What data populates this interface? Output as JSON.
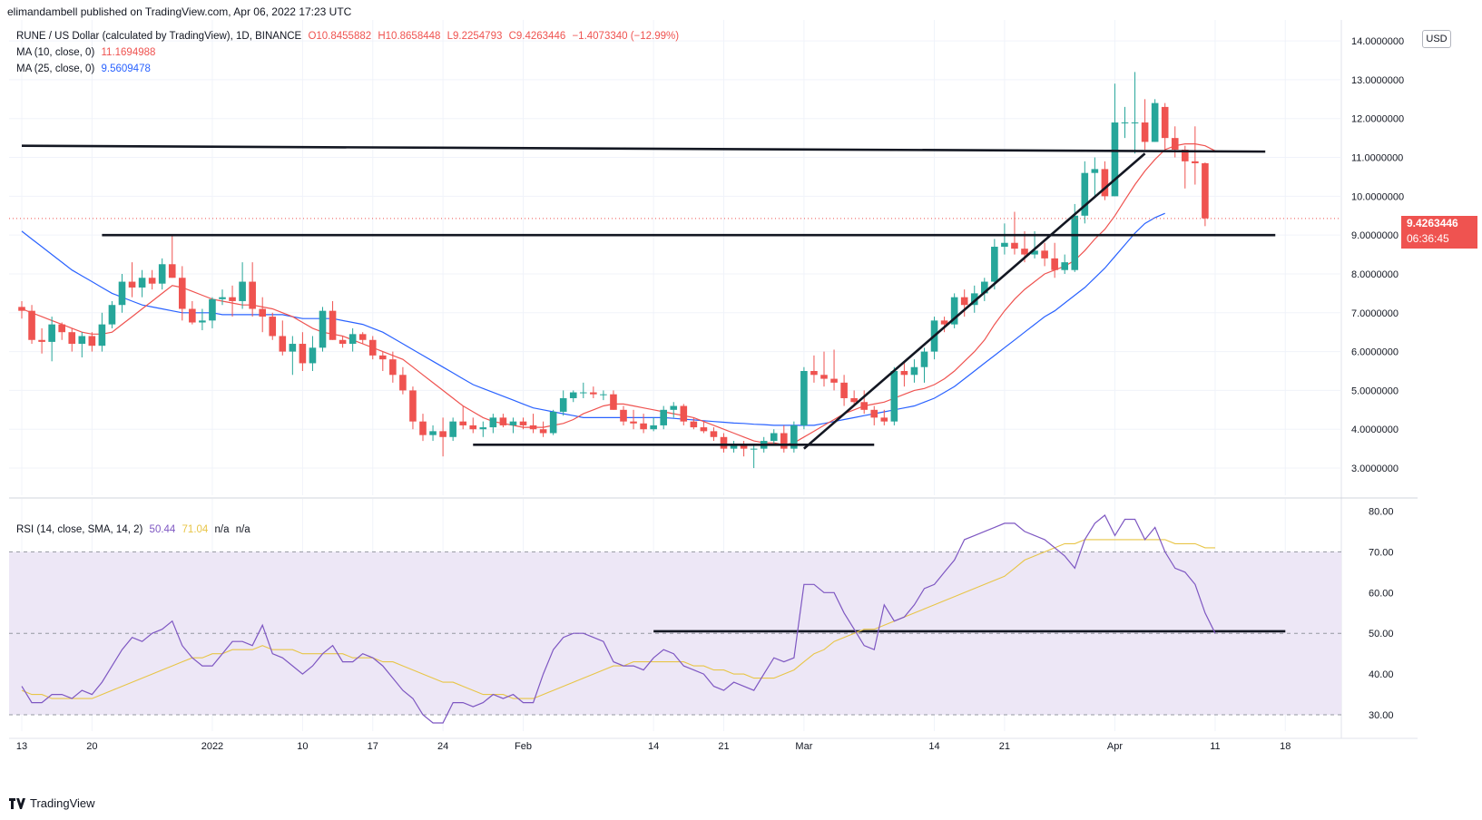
{
  "header": {
    "publisher_line": "elimandambell published on TradingView.com, Apr 06, 2022 17:23 UTC"
  },
  "legend": {
    "symbol": "RUNE / US Dollar (calculated by TradingView), 1D, BINANCE",
    "open": "O10.8455882",
    "high": "H10.8658448",
    "low": "L9.2254793",
    "close": "C9.4263446",
    "change": "−1.4073340 (−12.99%)",
    "ma10_label": "MA (10, close, 0)",
    "ma10_value": "11.1694988",
    "ma25_label": "MA (25, close, 0)",
    "ma25_value": "9.5609478",
    "rsi_label": "RSI (14, close, SMA, 14, 2)",
    "rsi_value": "50.44",
    "rsi_ma_value": "71.04",
    "rsi_na1": "n/a",
    "rsi_na2": "n/a"
  },
  "currency_button": "USD",
  "last_price_tag": {
    "price": "9.4263446",
    "countdown": "06:36:45"
  },
  "footer": {
    "brand": "TradingView"
  },
  "colors": {
    "up": "#26a69a",
    "down": "#ef5350",
    "ma10": "#ef5350",
    "ma25": "#2962ff",
    "rsi": "#7e57c2",
    "rsi_ma": "#e8c547",
    "rsi_band": "#ede7f6",
    "trendline": "#131722"
  },
  "chart_data": [
    {
      "type": "candlestick",
      "title": "RUNE / US Dollar (calculated by TradingView), 1D, BINANCE",
      "ylim": [
        2.3,
        14.4
      ],
      "y_ticks": [
        "3.0000000",
        "4.0000000",
        "5.0000000",
        "6.0000000",
        "7.0000000",
        "8.0000000",
        "9.0000000",
        "10.0000000",
        "11.0000000",
        "12.0000000",
        "13.0000000",
        "14.0000000"
      ],
      "y_tick_values": [
        3,
        4,
        5,
        6,
        7,
        8,
        9,
        10,
        11,
        12,
        13,
        14
      ],
      "x_ticks": [
        {
          "label": "13",
          "day": 0
        },
        {
          "label": "20",
          "day": 7
        },
        {
          "label": "2022",
          "day": 19
        },
        {
          "label": "10",
          "day": 28
        },
        {
          "label": "17",
          "day": 35
        },
        {
          "label": "24",
          "day": 42
        },
        {
          "label": "Feb",
          "day": 50
        },
        {
          "label": "14",
          "day": 63
        },
        {
          "label": "21",
          "day": 70
        },
        {
          "label": "Mar",
          "day": 78
        },
        {
          "label": "14",
          "day": 91
        },
        {
          "label": "21",
          "day": 98
        },
        {
          "label": "Apr",
          "day": 109
        },
        {
          "label": "11",
          "day": 119
        },
        {
          "label": "18",
          "day": 126
        }
      ],
      "candles": [
        [
          7.15,
          7.3,
          6.85,
          7.05
        ],
        [
          7.05,
          7.2,
          6.2,
          6.3
        ],
        [
          6.3,
          6.6,
          5.95,
          6.25
        ],
        [
          6.25,
          6.9,
          5.75,
          6.7
        ],
        [
          6.7,
          6.75,
          6.3,
          6.5
        ],
        [
          6.5,
          6.6,
          6.0,
          6.2
        ],
        [
          6.2,
          6.5,
          5.85,
          6.4
        ],
        [
          6.4,
          6.5,
          6.0,
          6.15
        ],
        [
          6.15,
          7.0,
          6.0,
          6.7
        ],
        [
          6.7,
          7.3,
          6.6,
          7.2
        ],
        [
          7.2,
          8.0,
          7.0,
          7.8
        ],
        [
          7.8,
          8.3,
          7.4,
          7.65
        ],
        [
          7.65,
          8.1,
          7.4,
          7.9
        ],
        [
          7.9,
          8.1,
          7.6,
          7.75
        ],
        [
          7.75,
          8.4,
          7.6,
          8.25
        ],
        [
          8.25,
          9.0,
          7.9,
          7.9
        ],
        [
          7.9,
          8.2,
          6.8,
          7.1
        ],
        [
          7.1,
          7.3,
          6.7,
          6.75
        ],
        [
          6.75,
          7.1,
          6.55,
          6.8
        ],
        [
          6.8,
          7.4,
          6.6,
          7.35
        ],
        [
          7.35,
          7.6,
          7.2,
          7.4
        ],
        [
          7.4,
          7.7,
          6.9,
          7.3
        ],
        [
          7.3,
          8.3,
          7.1,
          7.8
        ],
        [
          7.8,
          8.3,
          6.9,
          7.1
        ],
        [
          7.1,
          7.4,
          6.5,
          6.9
        ],
        [
          6.9,
          7.0,
          6.3,
          6.4
        ],
        [
          6.4,
          6.8,
          5.9,
          6.0
        ],
        [
          6.0,
          6.4,
          5.4,
          6.2
        ],
        [
          6.2,
          6.5,
          5.5,
          5.7
        ],
        [
          5.7,
          6.4,
          5.5,
          6.1
        ],
        [
          6.1,
          7.15,
          6.0,
          7.05
        ],
        [
          7.05,
          7.3,
          6.3,
          6.3
        ],
        [
          6.3,
          6.4,
          6.1,
          6.2
        ],
        [
          6.2,
          6.6,
          6.0,
          6.45
        ],
        [
          6.45,
          6.5,
          6.2,
          6.3
        ],
        [
          6.3,
          6.4,
          5.8,
          5.9
        ],
        [
          5.9,
          6.0,
          5.5,
          5.8
        ],
        [
          5.8,
          6.0,
          5.2,
          5.4
        ],
        [
          5.4,
          5.6,
          4.9,
          5.0
        ],
        [
          5.0,
          5.1,
          4.0,
          4.2
        ],
        [
          4.2,
          4.4,
          3.7,
          3.85
        ],
        [
          3.85,
          4.1,
          3.7,
          3.95
        ],
        [
          3.95,
          4.3,
          3.3,
          3.8
        ],
        [
          3.8,
          4.3,
          3.7,
          4.2
        ],
        [
          4.2,
          4.6,
          4.0,
          4.1
        ],
        [
          4.1,
          4.3,
          3.9,
          4.0
        ],
        [
          4.0,
          4.2,
          3.8,
          4.05
        ],
        [
          4.05,
          4.4,
          3.9,
          4.3
        ],
        [
          4.3,
          4.4,
          4.05,
          4.1
        ],
        [
          4.1,
          4.3,
          3.9,
          4.2
        ],
        [
          4.2,
          4.3,
          4.0,
          4.1
        ],
        [
          4.1,
          4.4,
          3.9,
          4.0
        ],
        [
          4.0,
          4.2,
          3.8,
          3.9
        ],
        [
          3.9,
          4.5,
          3.85,
          4.45
        ],
        [
          4.45,
          5.0,
          4.35,
          4.8
        ],
        [
          4.8,
          5.0,
          4.7,
          4.95
        ],
        [
          4.95,
          5.2,
          4.8,
          4.95
        ],
        [
          4.95,
          5.1,
          4.8,
          4.9
        ],
        [
          4.9,
          5.0,
          4.75,
          4.9
        ],
        [
          4.9,
          5.0,
          4.5,
          4.5
        ],
        [
          4.5,
          4.6,
          4.1,
          4.2
        ],
        [
          4.2,
          4.5,
          4.0,
          4.15
        ],
        [
          4.15,
          4.4,
          3.9,
          4.0
        ],
        [
          4.0,
          4.3,
          3.95,
          4.1
        ],
        [
          4.1,
          4.6,
          4.0,
          4.5
        ],
        [
          4.5,
          4.7,
          4.3,
          4.6
        ],
        [
          4.6,
          4.65,
          4.1,
          4.2
        ],
        [
          4.2,
          4.3,
          4.0,
          4.05
        ],
        [
          4.05,
          4.2,
          3.9,
          3.95
        ],
        [
          3.95,
          4.05,
          3.7,
          3.8
        ],
        [
          3.8,
          3.9,
          3.4,
          3.5
        ],
        [
          3.5,
          3.7,
          3.4,
          3.6
        ],
        [
          3.6,
          3.7,
          3.3,
          3.5
        ],
        [
          3.5,
          3.6,
          3.0,
          3.5
        ],
        [
          3.5,
          3.8,
          3.4,
          3.7
        ],
        [
          3.7,
          4.0,
          3.6,
          3.9
        ],
        [
          3.9,
          4.1,
          3.4,
          3.5
        ],
        [
          3.5,
          4.2,
          3.4,
          4.1
        ],
        [
          4.1,
          5.6,
          4.0,
          5.5
        ],
        [
          5.5,
          5.9,
          5.2,
          5.4
        ],
        [
          5.4,
          6.0,
          5.1,
          5.3
        ],
        [
          5.3,
          6.05,
          5.0,
          5.2
        ],
        [
          5.2,
          5.4,
          4.6,
          4.8
        ],
        [
          4.8,
          5.0,
          4.6,
          4.7
        ],
        [
          4.7,
          5.0,
          4.4,
          4.5
        ],
        [
          4.5,
          4.6,
          4.1,
          4.3
        ],
        [
          4.3,
          4.5,
          4.1,
          4.2
        ],
        [
          4.2,
          5.6,
          4.1,
          5.5
        ],
        [
          5.5,
          5.7,
          5.1,
          5.4
        ],
        [
          5.4,
          5.8,
          5.2,
          5.6
        ],
        [
          5.6,
          6.1,
          5.2,
          6.0
        ],
        [
          6.0,
          6.9,
          5.8,
          6.8
        ],
        [
          6.8,
          6.9,
          6.5,
          6.7
        ],
        [
          6.7,
          7.5,
          6.6,
          7.4
        ],
        [
          7.4,
          7.6,
          6.9,
          7.2
        ],
        [
          7.2,
          7.7,
          7.0,
          7.5
        ],
        [
          7.5,
          7.9,
          7.3,
          7.8
        ],
        [
          7.8,
          8.9,
          7.6,
          8.7
        ],
        [
          8.7,
          9.3,
          8.5,
          8.8
        ],
        [
          8.8,
          9.6,
          8.5,
          8.65
        ],
        [
          8.65,
          9.1,
          8.3,
          8.5
        ],
        [
          8.5,
          9.1,
          8.4,
          8.6
        ],
        [
          8.6,
          8.8,
          8.2,
          8.4
        ],
        [
          8.4,
          8.8,
          7.9,
          8.1
        ],
        [
          8.1,
          8.5,
          8.0,
          8.3
        ],
        [
          8.1,
          9.8,
          8.05,
          9.5
        ],
        [
          9.5,
          10.9,
          9.3,
          10.6
        ],
        [
          10.6,
          11.0,
          10.0,
          10.7
        ],
        [
          10.7,
          10.9,
          9.9,
          10.0
        ],
        [
          10.0,
          12.9,
          10.0,
          11.9
        ],
        [
          11.9,
          12.3,
          11.5,
          11.9
        ],
        [
          11.9,
          13.2,
          11.1,
          11.9
        ],
        [
          11.9,
          12.5,
          11.2,
          11.4
        ],
        [
          11.4,
          12.5,
          11.4,
          12.4
        ],
        [
          12.3,
          12.4,
          11.2,
          11.5
        ],
        [
          11.5,
          11.8,
          11.0,
          11.2
        ],
        [
          11.2,
          11.3,
          10.2,
          10.9
        ],
        [
          10.9,
          11.8,
          10.3,
          10.85
        ],
        [
          10.85,
          10.87,
          9.23,
          9.43
        ]
      ],
      "ma10_values": [
        7.1,
        7.0,
        6.9,
        6.8,
        6.7,
        6.6,
        6.5,
        6.45,
        6.45,
        6.5,
        6.7,
        6.9,
        7.1,
        7.3,
        7.5,
        7.7,
        7.65,
        7.55,
        7.45,
        7.35,
        7.3,
        7.25,
        7.2,
        7.2,
        7.15,
        7.1,
        7.0,
        6.9,
        6.75,
        6.6,
        6.5,
        6.45,
        6.4,
        6.3,
        6.2,
        6.1,
        6.0,
        5.9,
        5.8,
        5.6,
        5.4,
        5.2,
        5.0,
        4.8,
        4.6,
        4.45,
        4.3,
        4.2,
        4.15,
        4.1,
        4.05,
        4.05,
        4.05,
        4.1,
        4.15,
        4.25,
        4.4,
        4.5,
        4.6,
        4.65,
        4.65,
        4.6,
        4.55,
        4.5,
        4.45,
        4.4,
        4.35,
        4.3,
        4.2,
        4.1,
        4.0,
        3.9,
        3.8,
        3.7,
        3.65,
        3.65,
        3.6,
        3.65,
        3.8,
        3.95,
        4.1,
        4.25,
        4.4,
        4.5,
        4.6,
        4.65,
        4.7,
        4.8,
        4.9,
        5.0,
        5.05,
        5.15,
        5.3,
        5.5,
        5.75,
        6.0,
        6.3,
        6.7,
        7.05,
        7.35,
        7.6,
        7.8,
        8.0,
        8.1,
        8.2,
        8.35,
        8.6,
        8.9,
        9.15,
        9.5,
        9.9,
        10.3,
        10.65,
        10.95,
        11.2,
        11.3,
        11.35,
        11.35,
        11.3,
        11.17
      ],
      "ma25_values": [
        9.1,
        8.9,
        8.7,
        8.5,
        8.3,
        8.1,
        7.95,
        7.8,
        7.65,
        7.5,
        7.4,
        7.3,
        7.2,
        7.15,
        7.1,
        7.05,
        7.0,
        7.0,
        7.0,
        7.0,
        6.95,
        6.95,
        6.95,
        6.95,
        6.95,
        6.95,
        6.95,
        6.9,
        6.85,
        6.85,
        6.85,
        6.85,
        6.8,
        6.75,
        6.7,
        6.6,
        6.5,
        6.35,
        6.2,
        6.05,
        5.9,
        5.75,
        5.6,
        5.45,
        5.3,
        5.15,
        5.05,
        4.95,
        4.85,
        4.75,
        4.65,
        4.55,
        4.5,
        4.45,
        4.4,
        4.35,
        4.3,
        4.3,
        4.3,
        4.3,
        4.3,
        4.3,
        4.3,
        4.3,
        4.3,
        4.28,
        4.26,
        4.24,
        4.22,
        4.2,
        4.18,
        4.16,
        4.15,
        4.13,
        4.12,
        4.1,
        4.1,
        4.1,
        4.1,
        4.1,
        4.15,
        4.2,
        4.25,
        4.3,
        4.35,
        4.4,
        4.45,
        4.5,
        4.55,
        4.6,
        4.7,
        4.8,
        4.95,
        5.1,
        5.3,
        5.5,
        5.7,
        5.9,
        6.1,
        6.3,
        6.5,
        6.7,
        6.9,
        7.05,
        7.25,
        7.45,
        7.65,
        7.9,
        8.15,
        8.45,
        8.75,
        9.05,
        9.3,
        9.45,
        9.56
      ],
      "annotations": {
        "resistance_line": [
          [
            0,
            11.3
          ],
          [
            124,
            11.15
          ]
        ],
        "support_line_upper": [
          [
            8,
            9.0
          ],
          [
            125,
            9.0
          ]
        ],
        "support_line_lower": [
          [
            45,
            3.6
          ],
          [
            85,
            3.6
          ]
        ],
        "trend_line": [
          [
            78,
            3.5
          ],
          [
            112,
            11.1
          ]
        ],
        "last_price_dotted": 9.4263446
      }
    },
    {
      "type": "line",
      "title": "RSI (14, close, SMA, 14, 2)",
      "ylim": [
        26,
        83
      ],
      "y_ticks": [
        "30.00",
        "40.00",
        "50.00",
        "60.00",
        "70.00",
        "80.00"
      ],
      "y_tick_values": [
        30,
        40,
        50,
        60,
        70,
        80
      ],
      "band": [
        30,
        70
      ],
      "mid_line": 50,
      "rsi_values": [
        37,
        33,
        33,
        35,
        35,
        34,
        36,
        35,
        38,
        42,
        46,
        49,
        48,
        50,
        51,
        53,
        47,
        44,
        42,
        42,
        45,
        48,
        48,
        47,
        52,
        45,
        44,
        42,
        40,
        42,
        45,
        47,
        43,
        43,
        45,
        44,
        42,
        39,
        36,
        34,
        30,
        28,
        28,
        33,
        33,
        32,
        33,
        35,
        34,
        35,
        33,
        33,
        40,
        46,
        49,
        50,
        50,
        49,
        48,
        43,
        42,
        42,
        41,
        44,
        46,
        45,
        42,
        41,
        40,
        37,
        36,
        38,
        37,
        36,
        40,
        44,
        43,
        44,
        62,
        62,
        60,
        60,
        55,
        51,
        47,
        46,
        57,
        53,
        54,
        57,
        61,
        62,
        65,
        68,
        73,
        74,
        75,
        76,
        77,
        77,
        75,
        74,
        73,
        71,
        69,
        66,
        73,
        77,
        79,
        74,
        78,
        78,
        73,
        76,
        70,
        66,
        65,
        62,
        55,
        50
      ],
      "rsi_ma_values": [
        36,
        35,
        35,
        34,
        34,
        34,
        34,
        34,
        35,
        36,
        37,
        38,
        39,
        40,
        41,
        42,
        43,
        44,
        44,
        45,
        45,
        46,
        46,
        46,
        47,
        46,
        46,
        46,
        45,
        45,
        45,
        45,
        45,
        44,
        44,
        44,
        43,
        43,
        42,
        41,
        40,
        39,
        38,
        38,
        37,
        36,
        35,
        35,
        35,
        34,
        34,
        34,
        35,
        36,
        37,
        38,
        39,
        40,
        41,
        42,
        42,
        43,
        43,
        43,
        43,
        43,
        43,
        42,
        42,
        41,
        41,
        40,
        40,
        39,
        39,
        39,
        40,
        41,
        43,
        45,
        46,
        48,
        49,
        50,
        51,
        51,
        52,
        53,
        54,
        55,
        56,
        57,
        58,
        59,
        60,
        61,
        62,
        63,
        64,
        66,
        68,
        69,
        70,
        71,
        72,
        72,
        73,
        73,
        73,
        73,
        73,
        73,
        73,
        73,
        73,
        72,
        72,
        72,
        71,
        71
      ],
      "annotations": {
        "support_line": [
          [
            63,
            50.5
          ],
          [
            126,
            50.5
          ]
        ]
      }
    }
  ]
}
